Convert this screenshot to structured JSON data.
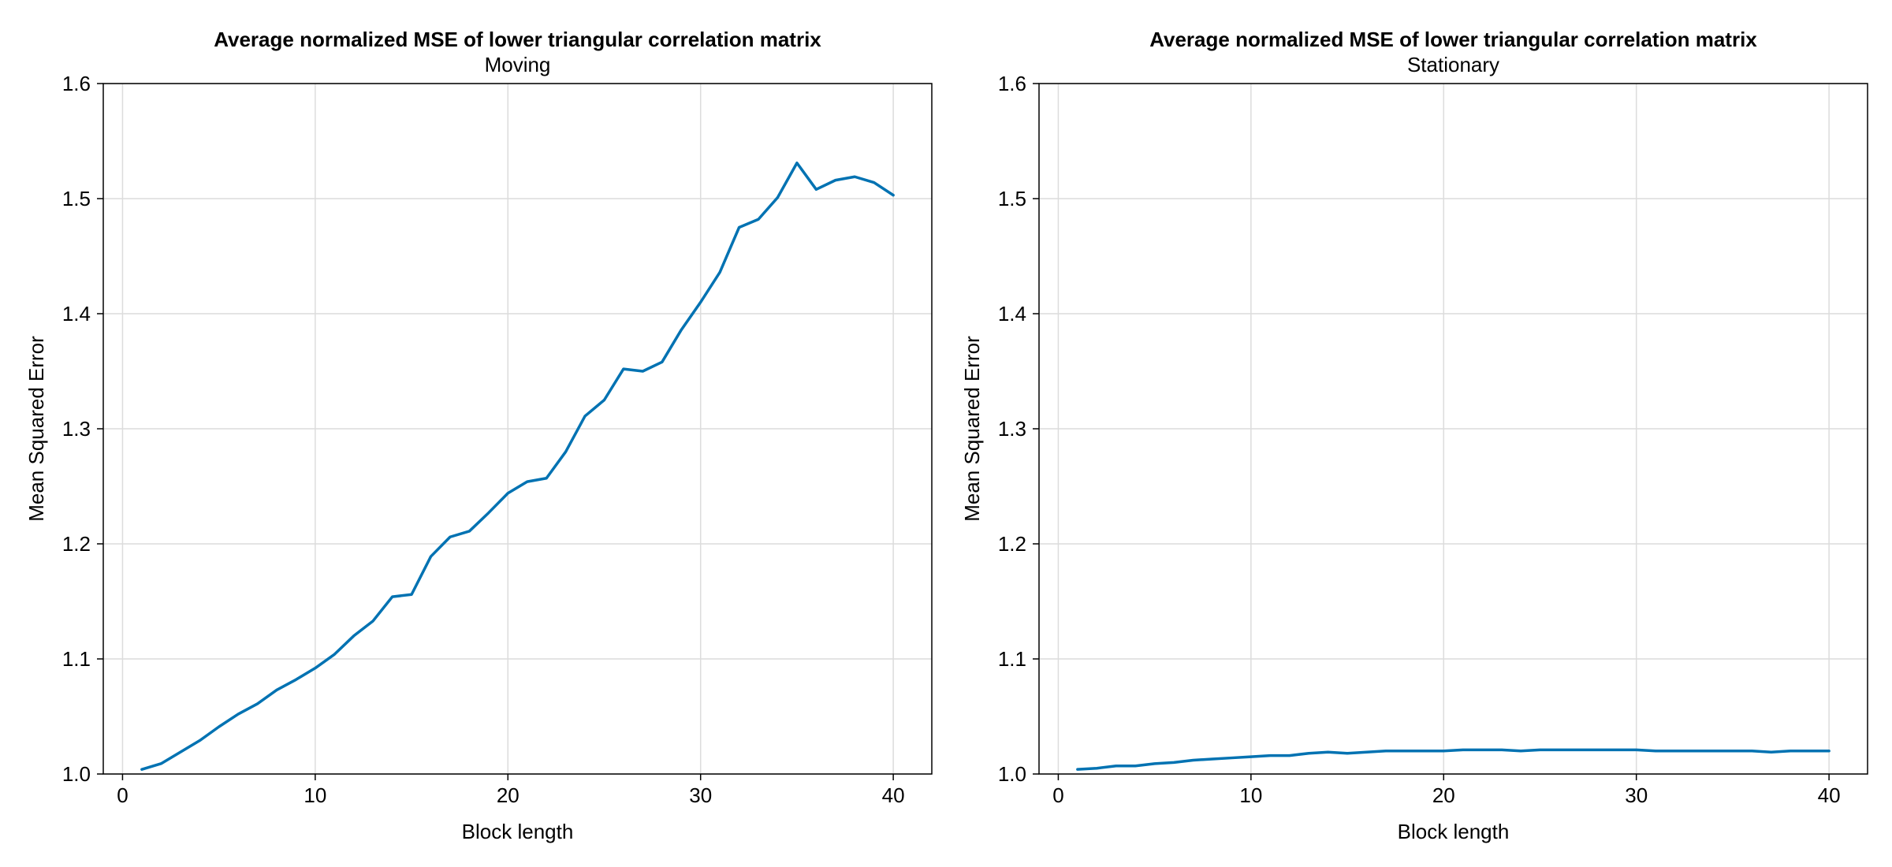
{
  "chart_data": [
    {
      "type": "line",
      "title": "Average normalized MSE of lower triangular correlation matrix",
      "subtitle": "Moving",
      "xlabel": "Block length",
      "ylabel": "Mean Squared Error",
      "xlim": [
        -1,
        42
      ],
      "ylim": [
        1.0,
        1.6
      ],
      "xticks": [
        0,
        10,
        20,
        30,
        40
      ],
      "yticks": [
        1.0,
        1.1,
        1.2,
        1.3,
        1.4,
        1.5,
        1.6
      ],
      "xtick_labels": [
        "0",
        "10",
        "20",
        "30",
        "40"
      ],
      "ytick_labels": [
        "1.0",
        "1.1",
        "1.2",
        "1.3",
        "1.4",
        "1.5",
        "1.6"
      ],
      "grid": true,
      "color": "#0072B2",
      "series": [
        {
          "x": [
            1,
            2,
            3,
            4,
            5,
            6,
            7,
            8,
            9,
            10,
            11,
            12,
            13,
            14,
            15,
            16,
            17,
            18,
            19,
            20,
            21,
            22,
            23,
            24,
            25,
            26,
            27,
            28,
            29,
            30,
            31,
            32,
            33,
            34,
            35,
            36,
            37,
            38,
            39,
            40
          ],
          "values": [
            1.004,
            1.009,
            1.019,
            1.029,
            1.041,
            1.052,
            1.061,
            1.073,
            1.082,
            1.092,
            1.104,
            1.12,
            1.133,
            1.154,
            1.156,
            1.189,
            1.206,
            1.211,
            1.227,
            1.244,
            1.254,
            1.257,
            1.28,
            1.311,
            1.325,
            1.352,
            1.35,
            1.358,
            1.386,
            1.41,
            1.436,
            1.475,
            1.482,
            1.501,
            1.531,
            1.508,
            1.516,
            1.519,
            1.514,
            1.503
          ]
        }
      ]
    },
    {
      "type": "line",
      "title": "Average normalized MSE of lower triangular correlation matrix",
      "subtitle": "Stationary",
      "xlabel": "Block length",
      "ylabel": "Mean Squared Error",
      "xlim": [
        -1,
        42
      ],
      "ylim": [
        1.0,
        1.6
      ],
      "xticks": [
        0,
        10,
        20,
        30,
        40
      ],
      "yticks": [
        1.0,
        1.1,
        1.2,
        1.3,
        1.4,
        1.5,
        1.6
      ],
      "xtick_labels": [
        "0",
        "10",
        "20",
        "30",
        "40"
      ],
      "ytick_labels": [
        "1.0",
        "1.1",
        "1.2",
        "1.3",
        "1.4",
        "1.5",
        "1.6"
      ],
      "grid": true,
      "color": "#0072B2",
      "series": [
        {
          "x": [
            1,
            2,
            3,
            4,
            5,
            6,
            7,
            8,
            9,
            10,
            11,
            12,
            13,
            14,
            15,
            16,
            17,
            18,
            19,
            20,
            21,
            22,
            23,
            24,
            25,
            26,
            27,
            28,
            29,
            30,
            31,
            32,
            33,
            34,
            35,
            36,
            37,
            38,
            39,
            40
          ],
          "values": [
            1.004,
            1.005,
            1.007,
            1.007,
            1.009,
            1.01,
            1.012,
            1.013,
            1.014,
            1.015,
            1.016,
            1.016,
            1.018,
            1.019,
            1.018,
            1.019,
            1.02,
            1.02,
            1.02,
            1.02,
            1.021,
            1.021,
            1.021,
            1.02,
            1.021,
            1.021,
            1.021,
            1.021,
            1.021,
            1.021,
            1.02,
            1.02,
            1.02,
            1.02,
            1.02,
            1.02,
            1.019,
            1.02,
            1.02,
            1.02
          ]
        }
      ]
    }
  ]
}
